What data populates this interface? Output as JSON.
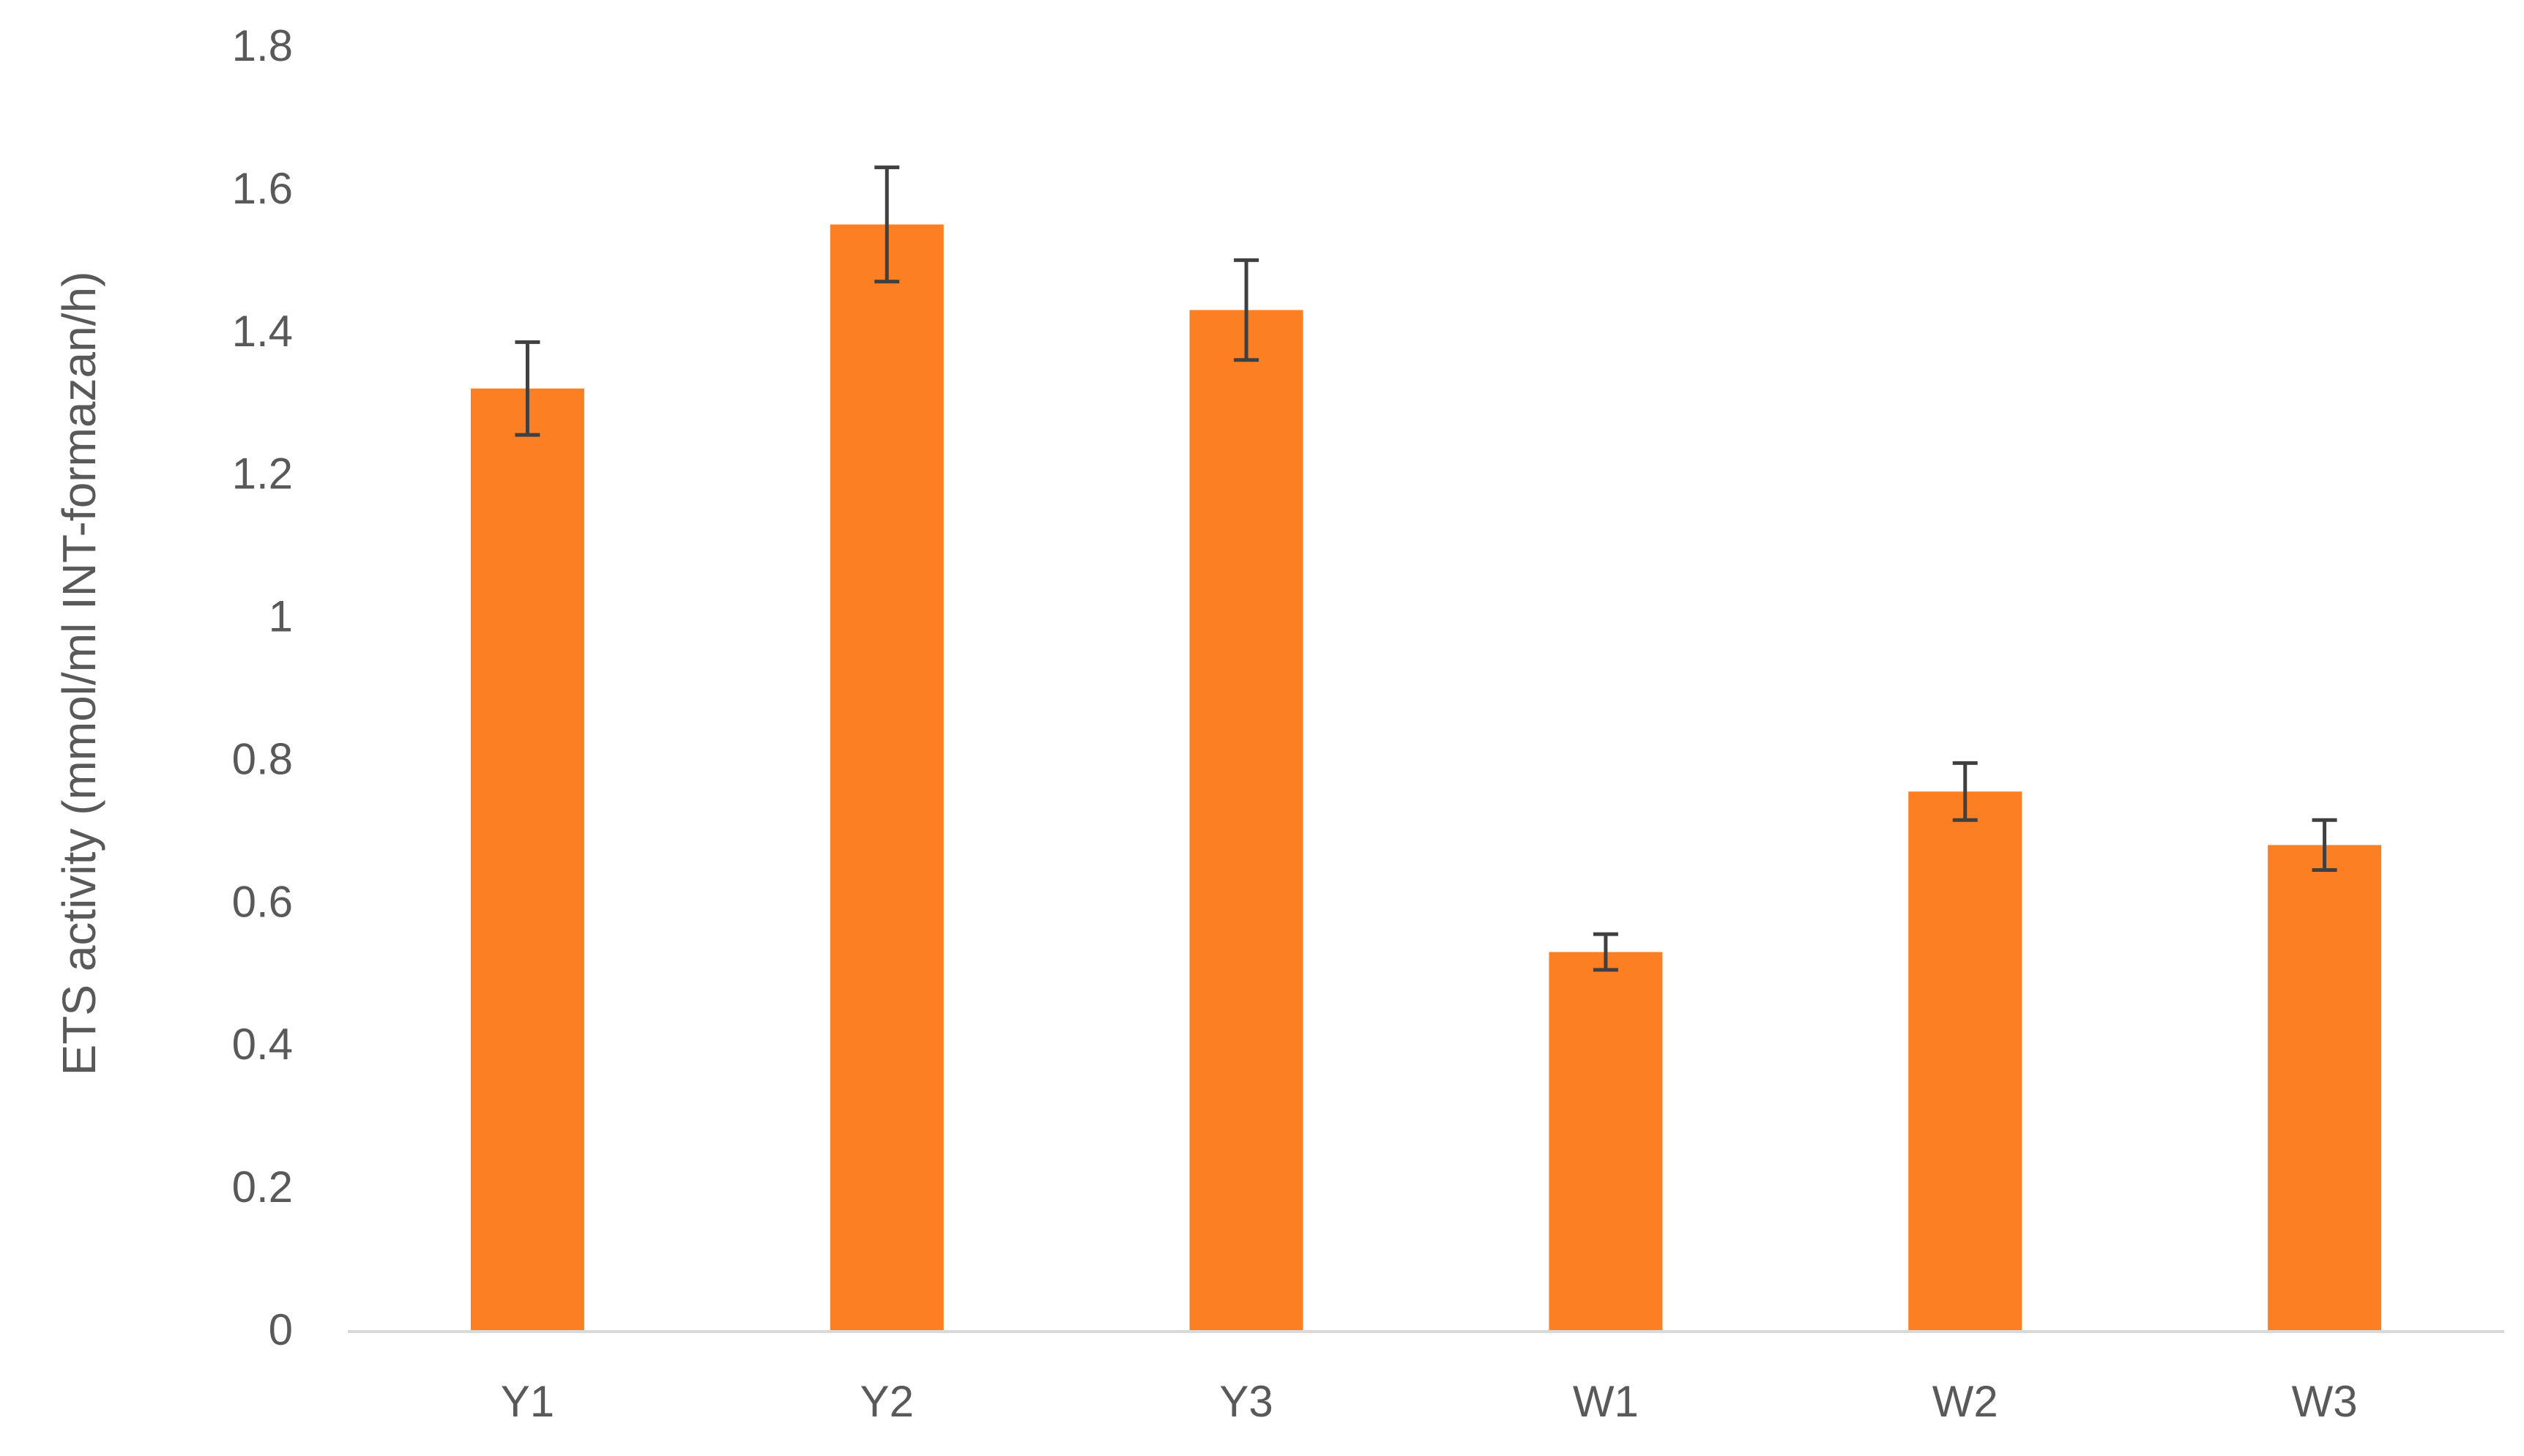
{
  "chart_data": {
    "type": "bar",
    "title": "",
    "xlabel": "",
    "ylabel": "ETS activity (mmol/ml INT-formazan/h)",
    "categories": [
      "Y1",
      "Y2",
      "Y3",
      "W1",
      "W2",
      "W3"
    ],
    "values": [
      1.32,
      1.55,
      1.43,
      0.53,
      0.755,
      0.68
    ],
    "error_bars": [
      0.065,
      0.08,
      0.07,
      0.025,
      0.04,
      0.035
    ],
    "ylim": [
      0,
      1.8
    ],
    "yticks": [
      0,
      0.2,
      0.4,
      0.6,
      0.8,
      1,
      1.2,
      1.4,
      1.6,
      1.8
    ],
    "ytick_labels": [
      "0",
      "0.2",
      "0.4",
      "0.6",
      "0.8",
      "1",
      "1.2",
      "1.4",
      "1.6",
      "1.8"
    ],
    "grid": false,
    "legend": "none",
    "colors": {
      "bar": "#FD7F23",
      "error_bar": "#404040",
      "axis_line": "#D9D9D9",
      "text": "#595959"
    }
  }
}
